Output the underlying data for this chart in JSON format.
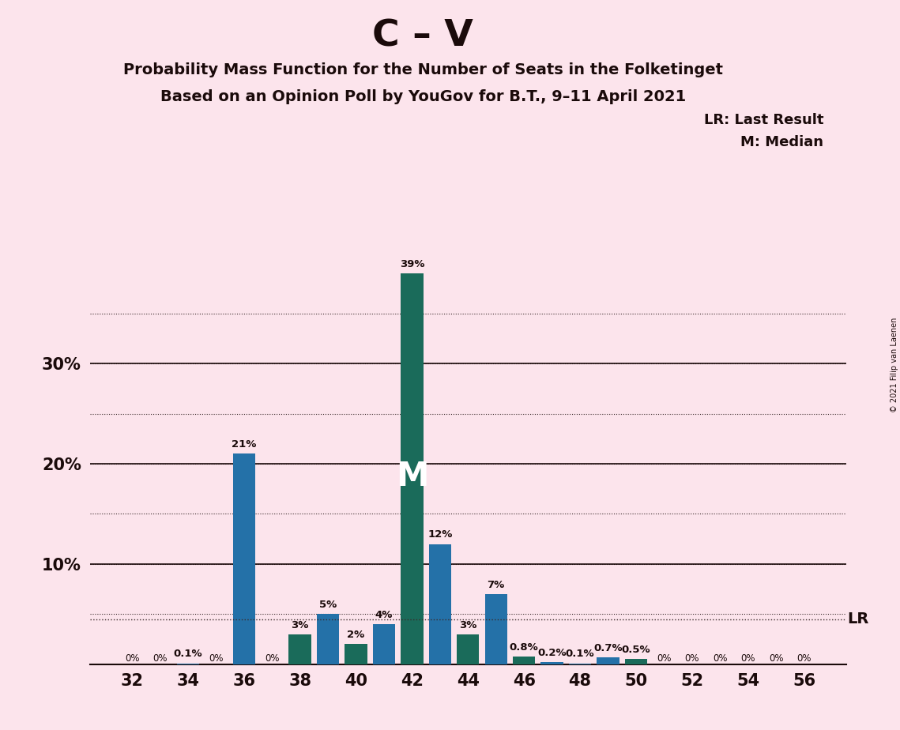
{
  "title_main": "C – V",
  "title_sub1": "Probability Mass Function for the Number of Seats in the Folketinget",
  "title_sub2": "Based on an Opinion Poll by YouGov for B.T., 9–11 April 2021",
  "copyright": "© 2021 Filip van Laenen",
  "legend_lr": "LR: Last Result",
  "legend_m": "M: Median",
  "background_color": "#fce4ec",
  "bar_color_blue": "#2471a8",
  "bar_color_teal": "#1a6b5a",
  "lr_line_y": 0.045,
  "lr_label": "LR",
  "median_label": "M",
  "median_seat": 42,
  "seats": [
    32,
    33,
    34,
    35,
    36,
    37,
    38,
    39,
    40,
    41,
    42,
    43,
    44,
    45,
    46,
    47,
    48,
    49,
    50,
    51,
    52,
    53,
    54,
    55,
    56
  ],
  "probabilities": [
    0.0,
    0.0,
    0.001,
    0.0,
    0.21,
    0.0,
    0.03,
    0.05,
    0.02,
    0.04,
    0.39,
    0.12,
    0.03,
    0.07,
    0.008,
    0.002,
    0.001,
    0.007,
    0.005,
    0.0,
    0.0,
    0.0,
    0.0,
    0.0,
    0.0
  ],
  "bar_colors": [
    "#2471a8",
    "#2471a8",
    "#2471a8",
    "#2471a8",
    "#2471a8",
    "#1a6b5a",
    "#1a6b5a",
    "#2471a8",
    "#1a6b5a",
    "#2471a8",
    "#1a6b5a",
    "#2471a8",
    "#1a6b5a",
    "#2471a8",
    "#1a6b5a",
    "#2471a8",
    "#2471a8",
    "#2471a8",
    "#1a6b5a",
    "#2471a8",
    "#2471a8",
    "#2471a8",
    "#2471a8",
    "#2471a8",
    "#2471a8"
  ],
  "labels": [
    "0%",
    "0%",
    "0.1%",
    "0%",
    "21%",
    "0%",
    "3%",
    "5%",
    "2%",
    "4%",
    "39%",
    "12%",
    "3%",
    "7%",
    "0.8%",
    "0.2%",
    "0.1%",
    "0.7%",
    "0.5%",
    "0%",
    "0%",
    "0%",
    "0%",
    "0%",
    "0%"
  ],
  "xticks": [
    32,
    34,
    36,
    38,
    40,
    42,
    44,
    46,
    48,
    50,
    52,
    54,
    56
  ],
  "grid_lines": [
    0.05,
    0.1,
    0.15,
    0.2,
    0.25,
    0.3,
    0.35
  ],
  "solid_lines": [
    0.1,
    0.2,
    0.3
  ],
  "ylim": [
    0,
    0.415
  ],
  "xlim": [
    30.5,
    57.5
  ]
}
